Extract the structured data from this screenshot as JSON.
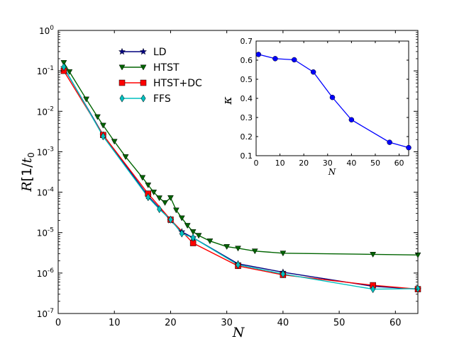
{
  "chart_data": [
    {
      "type": "line",
      "yscale": "log",
      "xlabel": "N",
      "ylabel": "R[1/t0]",
      "ylabel_parts": {
        "main": "R",
        "bracket_open": "[",
        "fraction": "1/",
        "sym": "t",
        "sub": "0",
        "bracket_close": "]"
      },
      "xlim": [
        0,
        64
      ],
      "ylim": [
        1e-07,
        1
      ],
      "xticks": [
        0,
        10,
        20,
        30,
        40,
        50,
        60
      ],
      "yticks": [
        {
          "value": 1e-07,
          "base": "10",
          "exp": "-7"
        },
        {
          "value": 1e-06,
          "base": "10",
          "exp": "-6"
        },
        {
          "value": 1e-05,
          "base": "10",
          "exp": "-5"
        },
        {
          "value": 0.0001,
          "base": "10",
          "exp": "-4"
        },
        {
          "value": 0.001,
          "base": "10",
          "exp": "-3"
        },
        {
          "value": 0.01,
          "base": "10",
          "exp": "-2"
        },
        {
          "value": 0.1,
          "base": "10",
          "exp": "-1"
        },
        {
          "value": 1,
          "base": "10",
          "exp": "0"
        }
      ],
      "legend_position": "top-left",
      "series": [
        {
          "name": "LD",
          "color": "#00007f",
          "marker": "star",
          "x": [
            1,
            8,
            16,
            20,
            22,
            24,
            32,
            40,
            56,
            64
          ],
          "y": [
            0.12,
            0.0026,
            8e-05,
            2e-05,
            1.05e-05,
            7.5e-06,
            1.7e-06,
            1.05e-06,
            4.7e-07,
            4e-07
          ]
        },
        {
          "name": "HTST",
          "color": "#006400",
          "marker": "triangle-down",
          "x": [
            1,
            2,
            5,
            7,
            8,
            10,
            12,
            15,
            16,
            17,
            18,
            19,
            20,
            21,
            22,
            23,
            24,
            25,
            27,
            30,
            32,
            35,
            40,
            56,
            64
          ],
          "y": [
            0.16,
            0.095,
            0.02,
            0.0073,
            0.0045,
            0.0018,
            0.00075,
            0.00023,
            0.00015,
            0.0001,
            7.2e-05,
            5.5e-05,
            7.3e-05,
            3.6e-05,
            2.3e-05,
            1.5e-05,
            1.05e-05,
            8.5e-06,
            6.2e-06,
            4.5e-06,
            4.1e-06,
            3.5e-06,
            3.1e-06,
            2.9e-06,
            2.8e-06
          ]
        },
        {
          "name": "HTST+DC",
          "color": "#ff0000",
          "marker": "square",
          "x": [
            1,
            8,
            16,
            20,
            24,
            32,
            40,
            56,
            64
          ],
          "y": [
            0.1,
            0.0026,
            9.2e-05,
            2.1e-05,
            5.5e-06,
            1.5e-06,
            9e-07,
            5e-07,
            4e-07
          ]
        },
        {
          "name": "FFS",
          "color": "#00bfbf",
          "marker": "diamond",
          "x": [
            1,
            8,
            16,
            18,
            20,
            22,
            24,
            32,
            40,
            56,
            64
          ],
          "y": [
            0.125,
            0.0024,
            7.5e-05,
            3.8e-05,
            2.1e-05,
            9.5e-06,
            7.5e-06,
            1.6e-06,
            9.5e-07,
            4e-07,
            4.1e-07
          ]
        }
      ]
    },
    {
      "type": "line",
      "xlabel": "N",
      "ylabel": "κ",
      "xlim": [
        0,
        64
      ],
      "ylim": [
        0.1,
        0.7
      ],
      "xticks": [
        0,
        10,
        20,
        30,
        40,
        50,
        60
      ],
      "yticks": [
        0.1,
        0.2,
        0.3,
        0.4,
        0.5,
        0.6,
        0.7
      ],
      "series": [
        {
          "name": "kappa",
          "color": "#0000ff",
          "marker": "circle",
          "x": [
            1,
            8,
            16,
            24,
            32,
            40,
            56,
            64
          ],
          "y": [
            0.63,
            0.608,
            0.602,
            0.538,
            0.405,
            0.288,
            0.17,
            0.142
          ]
        }
      ]
    }
  ]
}
